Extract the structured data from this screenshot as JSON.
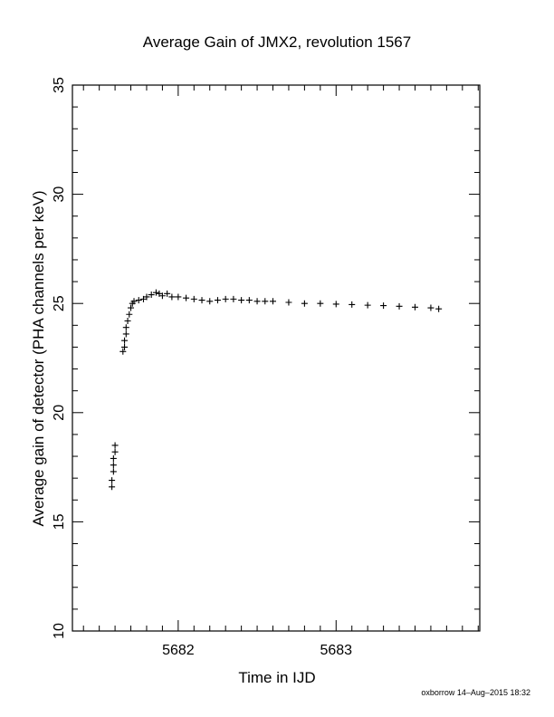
{
  "chart_data": {
    "type": "scatter",
    "title": "Average Gain of JMX2, revolution 1567",
    "xlabel": "Time in IJD",
    "ylabel": "Average gain of detector (PHA channels per keV)",
    "xlim": [
      5681.33,
      5683.91
    ],
    "ylim": [
      10,
      35
    ],
    "x_ticks": [
      5682,
      5683
    ],
    "y_ticks": [
      10,
      15,
      20,
      25,
      30,
      35
    ],
    "marker": "plus",
    "grid": false,
    "legend": "none",
    "series": [
      {
        "points": [
          [
            5681.58,
            16.6
          ],
          [
            5681.58,
            16.9
          ],
          [
            5681.59,
            17.3
          ],
          [
            5681.59,
            17.6
          ],
          [
            5681.59,
            17.9
          ],
          [
            5681.6,
            18.2
          ],
          [
            5681.6,
            18.5
          ],
          [
            5681.65,
            22.8
          ],
          [
            5681.66,
            23.0
          ],
          [
            5681.66,
            23.3
          ],
          [
            5681.67,
            23.6
          ],
          [
            5681.67,
            23.9
          ],
          [
            5681.68,
            24.2
          ],
          [
            5681.69,
            24.5
          ],
          [
            5681.7,
            24.8
          ],
          [
            5681.71,
            25.0
          ],
          [
            5681.72,
            25.1
          ],
          [
            5681.75,
            25.15
          ],
          [
            5681.78,
            25.2
          ],
          [
            5681.8,
            25.3
          ],
          [
            5681.83,
            25.4
          ],
          [
            5681.86,
            25.5
          ],
          [
            5681.88,
            25.45
          ],
          [
            5681.9,
            25.35
          ],
          [
            5681.93,
            25.45
          ],
          [
            5681.96,
            25.3
          ],
          [
            5682.0,
            25.3
          ],
          [
            5682.05,
            25.25
          ],
          [
            5682.1,
            25.2
          ],
          [
            5682.15,
            25.15
          ],
          [
            5682.2,
            25.1
          ],
          [
            5682.25,
            25.15
          ],
          [
            5682.3,
            25.2
          ],
          [
            5682.35,
            25.2
          ],
          [
            5682.4,
            25.15
          ],
          [
            5682.45,
            25.15
          ],
          [
            5682.5,
            25.1
          ],
          [
            5682.55,
            25.1
          ],
          [
            5682.6,
            25.1
          ],
          [
            5682.7,
            25.05
          ],
          [
            5682.8,
            25.0
          ],
          [
            5682.9,
            25.0
          ],
          [
            5683.0,
            24.97
          ],
          [
            5683.1,
            24.95
          ],
          [
            5683.2,
            24.92
          ],
          [
            5683.3,
            24.9
          ],
          [
            5683.4,
            24.87
          ],
          [
            5683.5,
            24.83
          ],
          [
            5683.6,
            24.8
          ],
          [
            5683.65,
            24.75
          ]
        ]
      }
    ]
  },
  "footer": {
    "stamp": "oxborrow 14–Aug–2015 18:32"
  }
}
